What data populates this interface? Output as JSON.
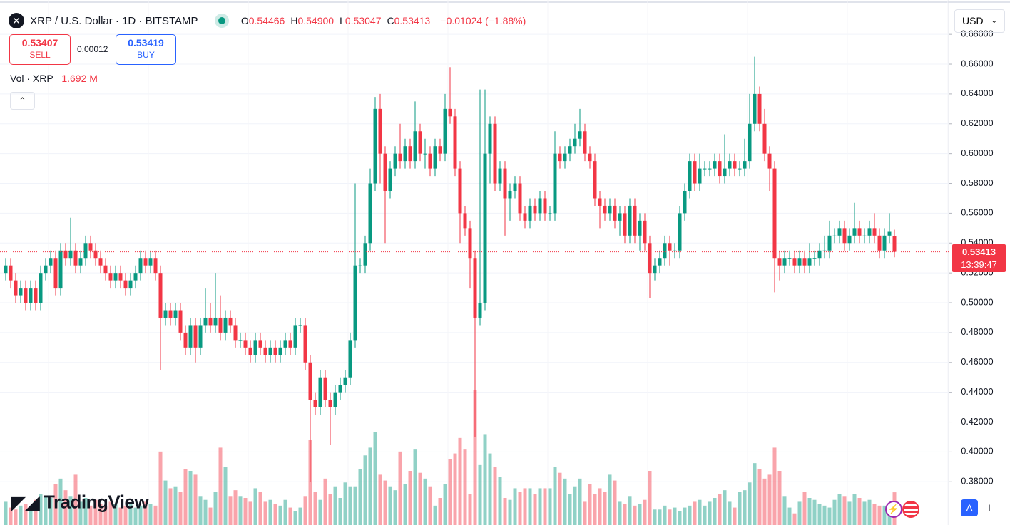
{
  "header": {
    "symbol": "XRP / U.S. Dollar · 1D · BITSTAMP",
    "ohlc": [
      {
        "key": "O",
        "value": "0.54466"
      },
      {
        "key": "H",
        "value": "0.54900"
      },
      {
        "key": "L",
        "value": "0.53047"
      },
      {
        "key": "C",
        "value": "0.53413"
      }
    ],
    "change": "−0.01024 (−1.88%)",
    "sell": {
      "price": "0.53407",
      "label": "SELL"
    },
    "spread": "0.00012",
    "buy": {
      "price": "0.53419",
      "label": "BUY"
    },
    "volume": {
      "label": "Vol · XRP",
      "value": "1.692 M"
    },
    "currency": "USD",
    "countdown": "13:39:47",
    "logo": "TradingView",
    "buttons": [
      "A",
      "L"
    ]
  },
  "chart_data": {
    "type": "candlestick",
    "open": [
      0.52,
      0.525,
      0.515,
      0.505,
      0.51,
      0.5,
      0.51,
      0.5,
      0.52,
      0.525,
      0.53,
      0.51,
      0.535,
      0.53,
      0.535,
      0.525,
      0.53,
      0.54,
      0.535,
      0.53,
      0.525,
      0.52,
      0.515,
      0.52,
      0.515,
      0.51,
      0.515,
      0.52,
      0.53,
      0.525,
      0.53,
      0.52,
      0.49,
      0.495,
      0.49,
      0.495,
      0.48,
      0.47,
      0.485,
      0.47,
      0.485,
      0.49,
      0.485,
      0.49,
      0.48,
      0.49,
      0.485,
      0.475,
      0.475,
      0.47,
      0.465,
      0.475,
      0.47,
      0.465,
      0.47,
      0.465,
      0.47,
      0.475,
      0.47,
      0.485,
      0.485,
      0.46,
      0.435,
      0.43,
      0.45,
      0.435,
      0.43,
      0.44,
      0.445,
      0.45,
      0.475,
      0.525,
      0.525,
      0.54,
      0.58,
      0.63,
      0.6,
      0.575,
      0.59,
      0.6,
      0.595,
      0.605,
      0.595,
      0.615,
      0.6,
      0.6,
      0.59,
      0.605,
      0.6,
      0.63,
      0.625,
      0.59,
      0.56,
      0.55,
      0.53,
      0.49,
      0.5,
      0.6,
      0.62,
      0.58,
      0.59,
      0.57,
      0.575,
      0.58,
      0.56,
      0.555,
      0.565,
      0.56,
      0.57,
      0.56,
      0.56,
      0.6,
      0.595,
      0.6,
      0.605,
      0.61,
      0.615,
      0.6,
      0.595,
      0.57,
      0.565,
      0.56,
      0.565,
      0.555,
      0.56,
      0.545,
      0.565,
      0.545,
      0.555,
      0.54,
      0.52,
      0.525,
      0.53,
      0.54,
      0.535,
      0.535,
      0.56,
      0.575,
      0.595,
      0.58,
      0.59,
      0.59,
      0.59,
      0.595,
      0.585,
      0.59,
      0.595,
      0.59,
      0.59,
      0.595,
      0.62,
      0.64,
      0.62,
      0.6,
      0.59,
      0.53,
      0.525,
      0.53,
      0.53,
      0.525,
      0.53,
      0.525,
      0.53,
      0.53,
      0.535,
      0.535,
      0.545,
      0.545,
      0.55,
      0.54,
      0.545,
      0.55,
      0.545,
      0.545,
      0.55,
      0.545,
      0.535,
      0.545,
      0.54466
    ],
    "high": [
      0.53,
      0.53,
      0.52,
      0.515,
      0.515,
      0.515,
      0.515,
      0.525,
      0.53,
      0.535,
      0.535,
      0.54,
      0.54,
      0.557,
      0.54,
      0.535,
      0.545,
      0.545,
      0.54,
      0.535,
      0.53,
      0.525,
      0.525,
      0.525,
      0.52,
      0.52,
      0.525,
      0.535,
      0.535,
      0.535,
      0.535,
      0.525,
      0.5,
      0.5,
      0.5,
      0.5,
      0.485,
      0.49,
      0.49,
      0.49,
      0.51,
      0.5,
      0.52,
      0.505,
      0.495,
      0.495,
      0.49,
      0.48,
      0.48,
      0.475,
      0.48,
      0.48,
      0.475,
      0.475,
      0.475,
      0.475,
      0.48,
      0.48,
      0.49,
      0.49,
      0.49,
      0.465,
      0.44,
      0.455,
      0.455,
      0.44,
      0.445,
      0.45,
      0.455,
      0.48,
      0.58,
      0.53,
      0.545,
      0.59,
      0.638,
      0.64,
      0.605,
      0.595,
      0.605,
      0.62,
      0.61,
      0.61,
      0.635,
      0.62,
      0.61,
      0.605,
      0.61,
      0.61,
      0.64,
      0.658,
      0.63,
      0.595,
      0.565,
      0.555,
      0.535,
      0.643,
      0.643,
      0.625,
      0.625,
      0.595,
      0.595,
      0.58,
      0.585,
      0.585,
      0.565,
      0.57,
      0.57,
      0.575,
      0.575,
      0.565,
      0.615,
      0.605,
      0.605,
      0.61,
      0.62,
      0.63,
      0.62,
      0.605,
      0.6,
      0.575,
      0.57,
      0.57,
      0.57,
      0.565,
      0.565,
      0.57,
      0.57,
      0.56,
      0.56,
      0.545,
      0.53,
      0.535,
      0.545,
      0.545,
      0.54,
      0.565,
      0.58,
      0.6,
      0.6,
      0.6,
      0.595,
      0.595,
      0.6,
      0.6,
      0.613,
      0.6,
      0.6,
      0.595,
      0.61,
      0.64,
      0.665,
      0.645,
      0.63,
      0.605,
      0.595,
      0.535,
      0.535,
      0.535,
      0.535,
      0.535,
      0.535,
      0.54,
      0.535,
      0.54,
      0.545,
      0.555,
      0.55,
      0.555,
      0.555,
      0.55,
      0.567,
      0.555,
      0.55,
      0.555,
      0.56,
      0.55,
      0.55,
      0.56,
      0.549
    ],
    "low": [
      0.515,
      0.51,
      0.5,
      0.5,
      0.495,
      0.495,
      0.495,
      0.495,
      0.515,
      0.52,
      0.505,
      0.505,
      0.525,
      0.525,
      0.52,
      0.52,
      0.525,
      0.53,
      0.525,
      0.52,
      0.515,
      0.51,
      0.51,
      0.51,
      0.505,
      0.505,
      0.51,
      0.515,
      0.52,
      0.52,
      0.515,
      0.455,
      0.485,
      0.485,
      0.485,
      0.475,
      0.465,
      0.465,
      0.46,
      0.465,
      0.48,
      0.48,
      0.48,
      0.475,
      0.475,
      0.48,
      0.47,
      0.47,
      0.465,
      0.46,
      0.46,
      0.465,
      0.46,
      0.46,
      0.46,
      0.46,
      0.465,
      0.465,
      0.465,
      0.48,
      0.455,
      0.38,
      0.425,
      0.425,
      0.43,
      0.405,
      0.425,
      0.435,
      0.44,
      0.445,
      0.47,
      0.52,
      0.52,
      0.535,
      0.575,
      0.58,
      0.54,
      0.57,
      0.585,
      0.59,
      0.59,
      0.59,
      0.59,
      0.595,
      0.59,
      0.585,
      0.585,
      0.595,
      0.595,
      0.62,
      0.585,
      0.54,
      0.545,
      0.51,
      0.41,
      0.485,
      0.495,
      0.58,
      0.575,
      0.575,
      0.545,
      0.555,
      0.57,
      0.555,
      0.55,
      0.55,
      0.555,
      0.555,
      0.555,
      0.555,
      0.555,
      0.59,
      0.59,
      0.595,
      0.6,
      0.605,
      0.595,
      0.59,
      0.565,
      0.55,
      0.555,
      0.555,
      0.55,
      0.545,
      0.54,
      0.54,
      0.54,
      0.535,
      0.535,
      0.503,
      0.515,
      0.52,
      0.525,
      0.525,
      0.53,
      0.53,
      0.555,
      0.57,
      0.575,
      0.575,
      0.585,
      0.585,
      0.585,
      0.58,
      0.58,
      0.585,
      0.585,
      0.585,
      0.585,
      0.59,
      0.615,
      0.615,
      0.595,
      0.575,
      0.507,
      0.515,
      0.52,
      0.525,
      0.52,
      0.52,
      0.52,
      0.52,
      0.525,
      0.525,
      0.53,
      0.53,
      0.54,
      0.54,
      0.535,
      0.535,
      0.54,
      0.54,
      0.54,
      0.54,
      0.54,
      0.53,
      0.53,
      0.54,
      0.53047
    ],
    "close": [
      0.525,
      0.515,
      0.505,
      0.51,
      0.5,
      0.51,
      0.5,
      0.52,
      0.525,
      0.53,
      0.51,
      0.535,
      0.53,
      0.535,
      0.525,
      0.53,
      0.54,
      0.535,
      0.53,
      0.525,
      0.52,
      0.515,
      0.52,
      0.515,
      0.51,
      0.515,
      0.52,
      0.53,
      0.525,
      0.53,
      0.52,
      0.49,
      0.495,
      0.49,
      0.495,
      0.48,
      0.47,
      0.485,
      0.47,
      0.485,
      0.49,
      0.485,
      0.49,
      0.48,
      0.49,
      0.485,
      0.475,
      0.475,
      0.47,
      0.465,
      0.475,
      0.47,
      0.465,
      0.47,
      0.465,
      0.47,
      0.475,
      0.47,
      0.485,
      0.485,
      0.46,
      0.435,
      0.43,
      0.45,
      0.435,
      0.43,
      0.44,
      0.445,
      0.45,
      0.475,
      0.525,
      0.525,
      0.54,
      0.58,
      0.63,
      0.6,
      0.575,
      0.59,
      0.6,
      0.595,
      0.605,
      0.595,
      0.615,
      0.6,
      0.6,
      0.59,
      0.605,
      0.6,
      0.63,
      0.625,
      0.59,
      0.56,
      0.55,
      0.53,
      0.49,
      0.5,
      0.6,
      0.62,
      0.58,
      0.59,
      0.57,
      0.575,
      0.58,
      0.56,
      0.555,
      0.565,
      0.56,
      0.57,
      0.56,
      0.56,
      0.6,
      0.595,
      0.6,
      0.605,
      0.61,
      0.615,
      0.6,
      0.595,
      0.57,
      0.565,
      0.56,
      0.565,
      0.555,
      0.56,
      0.545,
      0.565,
      0.545,
      0.555,
      0.54,
      0.52,
      0.525,
      0.53,
      0.54,
      0.535,
      0.535,
      0.56,
      0.575,
      0.595,
      0.58,
      0.59,
      0.59,
      0.59,
      0.595,
      0.585,
      0.59,
      0.595,
      0.59,
      0.59,
      0.595,
      0.62,
      0.64,
      0.62,
      0.6,
      0.59,
      0.53,
      0.525,
      0.53,
      0.53,
      0.525,
      0.53,
      0.525,
      0.53,
      0.53,
      0.535,
      0.535,
      0.545,
      0.545,
      0.55,
      0.54,
      0.545,
      0.55,
      0.545,
      0.545,
      0.55,
      0.545,
      0.535,
      0.545,
      0.548,
      0.53413
    ],
    "volume": [
      1.2,
      0.9,
      0.8,
      1.0,
      1.1,
      0.9,
      1.3,
      1.6,
      1.5,
      1.4,
      2.1,
      2.4,
      1.8,
      1.5,
      2.6,
      1.2,
      1.4,
      1.0,
      1.3,
      1.1,
      1.0,
      1.2,
      1.1,
      0.9,
      1.0,
      1.1,
      0.9,
      1.0,
      1.2,
      1.1,
      1.0,
      3.8,
      2.3,
      1.9,
      2.0,
      1.7,
      2.9,
      2.8,
      2.6,
      1.5,
      1.3,
      0.9,
      1.7,
      4.0,
      3.0,
      1.5,
      1.8,
      1.5,
      1.4,
      1.2,
      1.9,
      1.7,
      1.2,
      1.3,
      1.1,
      1.0,
      1.3,
      0.9,
      0.7,
      0.9,
      1.5,
      4.4,
      1.7,
      1.3,
      2.4,
      1.6,
      2.0,
      1.4,
      2.2,
      2.0,
      2.0,
      2.9,
      3.6,
      4.0,
      4.8,
      2.6,
      2.3,
      2.0,
      1.8,
      3.8,
      2.1,
      2.8,
      3.9,
      2.7,
      2.4,
      2.0,
      1.0,
      1.4,
      2.1,
      3.4,
      3.7,
      4.5,
      3.9,
      1.6,
      7.0,
      3.1,
      4.7,
      3.7,
      3.0,
      2.5,
      1.4,
      1.3,
      1.9,
      1.7,
      1.9,
      1.9,
      1.6,
      1.9,
      1.9,
      1.9,
      3.0,
      2.7,
      2.4,
      1.6,
      2.0,
      2.4,
      1.2,
      2.1,
      1.6,
      1.9,
      1.7,
      2.6,
      2.3,
      1.2,
      1.1,
      1.5,
      1.0,
      1.1,
      1.3,
      2.8,
      0.8,
      0.8,
      1.0,
      0.8,
      0.9,
      0.7,
      0.9,
      1.0,
      1.2,
      1.3,
      1.0,
      1.2,
      1.4,
      1.6,
      1.8,
      1.2,
      0.9,
      1.7,
      1.8,
      2.2,
      3.2,
      2.9,
      2.4,
      2.6,
      4.0,
      2.8,
      1.5,
      0.9,
      0.6,
      1.2,
      1.7,
      1.4,
      1.3,
      1.1,
      1.0,
      0.9,
      1.3,
      1.6,
      1.5,
      1.2,
      1.6,
      1.4,
      1.2,
      1.3,
      1.1,
      1.0,
      1.0,
      0.8,
      1.692
    ],
    "ylim": [
      0.351,
      0.703
    ],
    "yticks": [
      {
        "value": 0.38,
        "label": "0.38000"
      },
      {
        "value": 0.4,
        "label": "0.40000"
      },
      {
        "value": 0.42,
        "label": "0.42000"
      },
      {
        "value": 0.44,
        "label": "0.44000"
      },
      {
        "value": 0.46,
        "label": "0.46000"
      },
      {
        "value": 0.48,
        "label": "0.48000"
      },
      {
        "value": 0.5,
        "label": "0.50000"
      },
      {
        "value": 0.52,
        "label": "0.52000"
      },
      {
        "value": 0.54,
        "label": "0.54000"
      },
      {
        "value": 0.56,
        "label": "0.56000"
      },
      {
        "value": 0.58,
        "label": "0.58000"
      },
      {
        "value": 0.6,
        "label": "0.60000"
      },
      {
        "value": 0.62,
        "label": "0.62000"
      },
      {
        "value": 0.64,
        "label": "0.64000"
      },
      {
        "value": 0.66,
        "label": "0.66000"
      },
      {
        "value": 0.68,
        "label": "0.68000"
      }
    ],
    "up_color": "#089981",
    "down_color": "#f23645",
    "grid": true
  }
}
